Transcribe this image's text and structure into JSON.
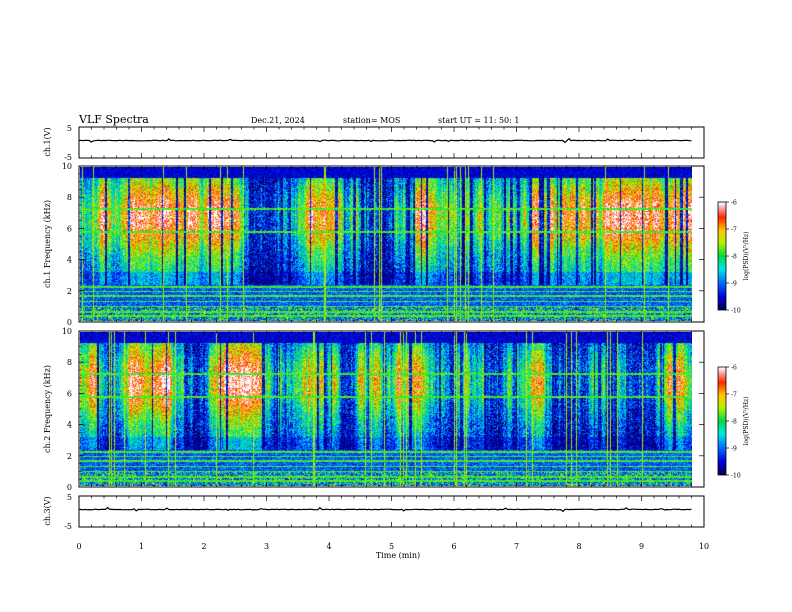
{
  "header": {
    "title": "VLF Spectra",
    "date": "Dec.21, 2024",
    "station": "station= MOS",
    "start": "start  UT  =    11: 50: 1"
  },
  "colorbar": {
    "label": "log(PSD)(V²/Hz)",
    "ticks": [
      "-6",
      "-7",
      "-8",
      "-9",
      "-10"
    ]
  },
  "chart_data": [
    {
      "type": "line",
      "name": "waveform-ch1",
      "ylabel": "ch.1(V)",
      "ylim": [
        -5,
        5
      ],
      "yticks": [
        "5",
        "-5"
      ],
      "x": [
        0,
        10
      ],
      "values": [
        0,
        0
      ]
    },
    {
      "type": "heatmap",
      "name": "spectrogram-ch1",
      "ylabel": "ch.1  Frequency (kHz)",
      "ylim": [
        0,
        10
      ],
      "yticks": [
        "10",
        "8",
        "6",
        "4",
        "2",
        "0"
      ],
      "xlim": [
        0,
        10
      ],
      "data_xmax": 9.8,
      "zlim": [
        -10,
        -6
      ]
    },
    {
      "type": "heatmap",
      "name": "spectrogram-ch2",
      "ylabel": "ch.2  Frequency (kHz)",
      "ylim": [
        0,
        10
      ],
      "yticks": [
        "10",
        "8",
        "6",
        "4",
        "2",
        "0"
      ],
      "xlim": [
        0,
        10
      ],
      "data_xmax": 9.8,
      "zlim": [
        -10,
        -6
      ]
    },
    {
      "type": "line",
      "name": "waveform-ch3",
      "ylabel": "ch.3(V)",
      "ylim": [
        -5,
        5
      ],
      "yticks": [
        "5",
        "-5"
      ],
      "x": [
        0,
        10
      ],
      "values": [
        0,
        0
      ]
    }
  ],
  "xaxis": {
    "label": "Time  (min)",
    "ticks": [
      "0",
      "1",
      "2",
      "3",
      "4",
      "5",
      "6",
      "7",
      "8",
      "9",
      "10"
    ]
  }
}
